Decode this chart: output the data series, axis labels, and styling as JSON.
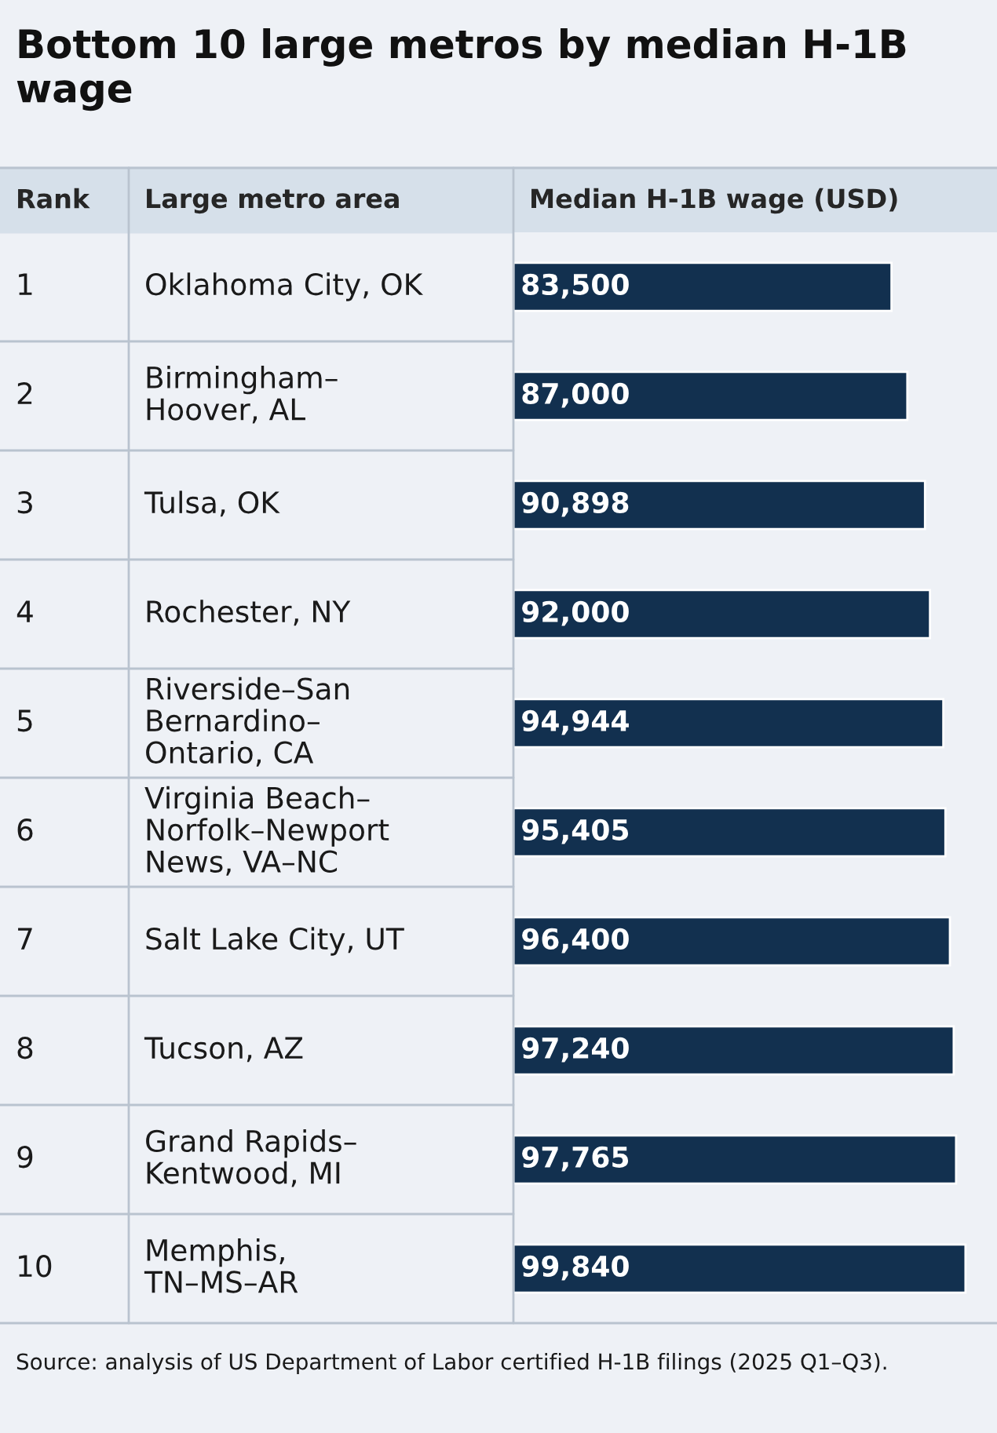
{
  "chart_data": {
    "type": "bar",
    "orientation": "horizontal",
    "title": "Bottom 10 large metros by median H-1B wage",
    "ylabel": "Large metro area",
    "xlabel": "Median H-1B wage (USD)",
    "categories": [
      "Oklahoma City, OK",
      "Birmingham–\nHoover, AL",
      "Tulsa, OK",
      "Rochester, NY",
      "Riverside–San\nBernardino–\nOntario, CA",
      "Virginia Beach–\nNorfolk–Newport\nNews, VA–NC",
      "Salt Lake City, UT",
      "Tucson, AZ",
      "Grand Rapids–\nKentwood, MI",
      "Memphis,\nTN–MS–AR"
    ],
    "values": [
      83500,
      87000,
      90898,
      92000,
      94944,
      95405,
      96400,
      97240,
      97765,
      99840
    ],
    "value_labels": [
      "83,500",
      "87,000",
      "90,898",
      "92,000",
      "94,944",
      "95,405",
      "96,400",
      "97,240",
      "97,765",
      "99,840"
    ],
    "color": "#12304f",
    "xlim": [
      0,
      106800
    ],
    "annotations": [
      "Rank",
      "1",
      "2",
      "3",
      "4",
      "5",
      "6",
      "7",
      "8",
      "9",
      "10",
      "Source: analysis of US Department of Labor certified H-1B filings (2025 Q1–Q3)."
    ],
    "legend": false
  }
}
